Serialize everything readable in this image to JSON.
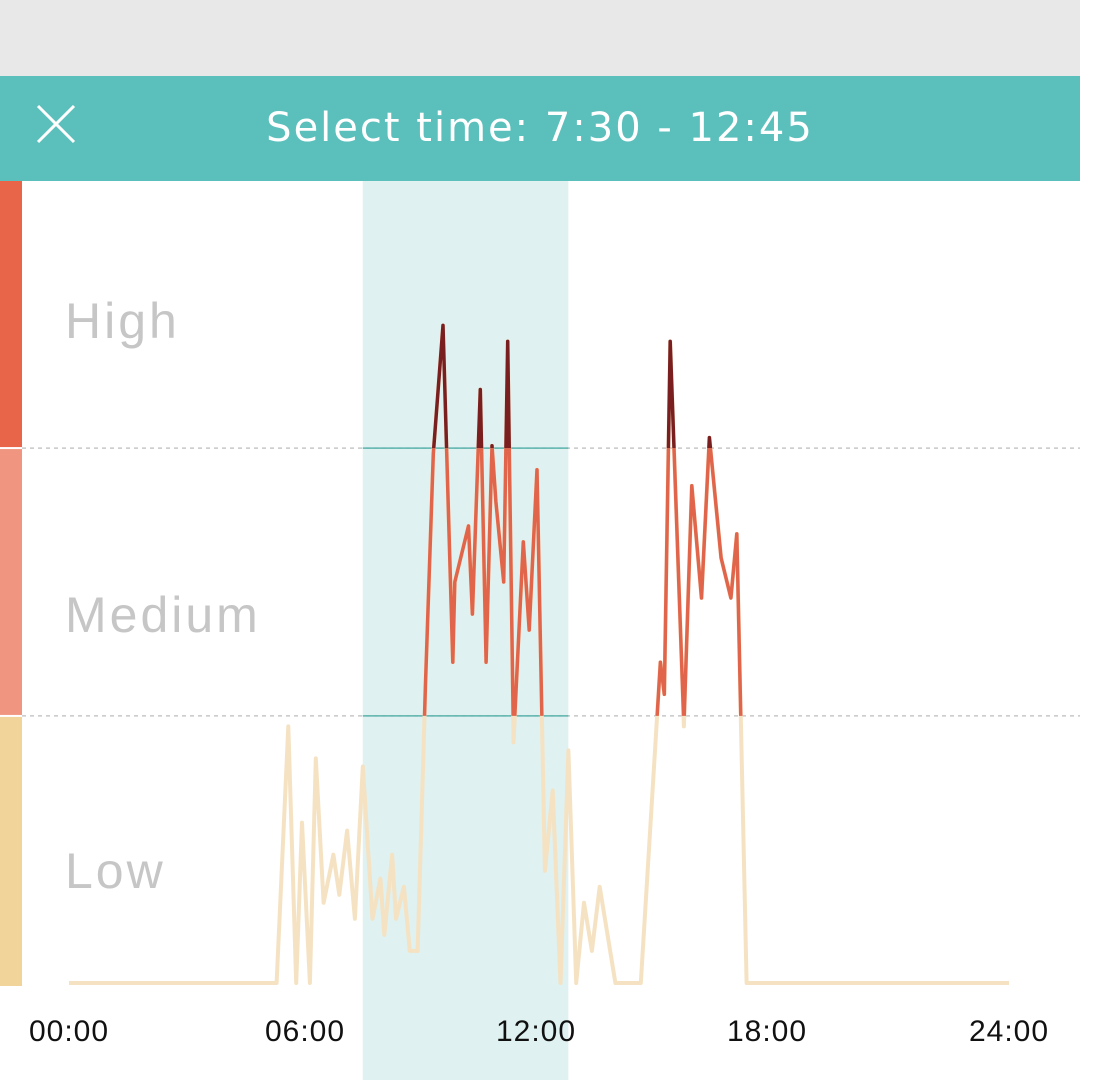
{
  "header": {
    "title": "Select time: 7:30 - 12:45",
    "close_icon": "close-icon"
  },
  "levels": [
    {
      "label": "High",
      "color": "#e8654a"
    },
    {
      "label": "Medium",
      "color": "#ef9580"
    },
    {
      "label": "Low",
      "color": "#f0d49a"
    }
  ],
  "colors": {
    "header": "#5bc0bc",
    "selection": "#dff1f0",
    "high_line": "#7a1f1f",
    "medium_line": "#e0654a",
    "low_line": "#f5e2c2"
  },
  "selection": {
    "start": "7:30",
    "end": "12:45"
  },
  "chart_data": {
    "type": "line",
    "x_unit": "hours",
    "xlim": [
      0,
      24
    ],
    "ylim": [
      0,
      100
    ],
    "thresholds": [
      33.3,
      66.7
    ],
    "x_ticks": [
      "00:00",
      "06:00",
      "12:00",
      "18:00",
      "24:00"
    ],
    "selection_range": [
      7.5,
      12.75
    ],
    "series": [
      {
        "x": [
          0,
          5.3,
          5.6,
          5.8,
          5.95,
          6.15,
          6.3,
          6.5,
          6.75,
          6.9,
          7.1,
          7.3,
          7.5,
          7.75,
          7.95,
          8.05,
          8.25,
          8.35,
          8.55,
          8.7,
          8.9,
          9.1,
          9.3,
          9.55,
          9.8,
          9.85,
          10.2,
          10.3,
          10.5,
          10.65,
          10.8,
          10.9,
          11.1,
          11.2,
          11.35,
          11.6,
          11.75,
          11.95,
          12.15,
          12.35,
          12.55,
          12.75,
          12.95,
          13.15,
          13.35,
          13.55,
          13.95,
          14.6,
          15.1,
          15.2,
          15.35,
          15.7,
          15.9,
          16.15,
          16.35,
          16.65,
          16.9,
          17.05,
          17.3,
          24
        ],
        "y": [
          0,
          0,
          32,
          0,
          20,
          0,
          28,
          10,
          16,
          11,
          19,
          8,
          27,
          8,
          13,
          6,
          16,
          8,
          12,
          4,
          4,
          37,
          66,
          82,
          40,
          50,
          57,
          46,
          74,
          40,
          67,
          60,
          50,
          80,
          30,
          55,
          44,
          64,
          14,
          24,
          0,
          29,
          0,
          10,
          4,
          12,
          0,
          0,
          40,
          36,
          80,
          32,
          62,
          48,
          68,
          53,
          48,
          56,
          0,
          0
        ]
      }
    ]
  }
}
